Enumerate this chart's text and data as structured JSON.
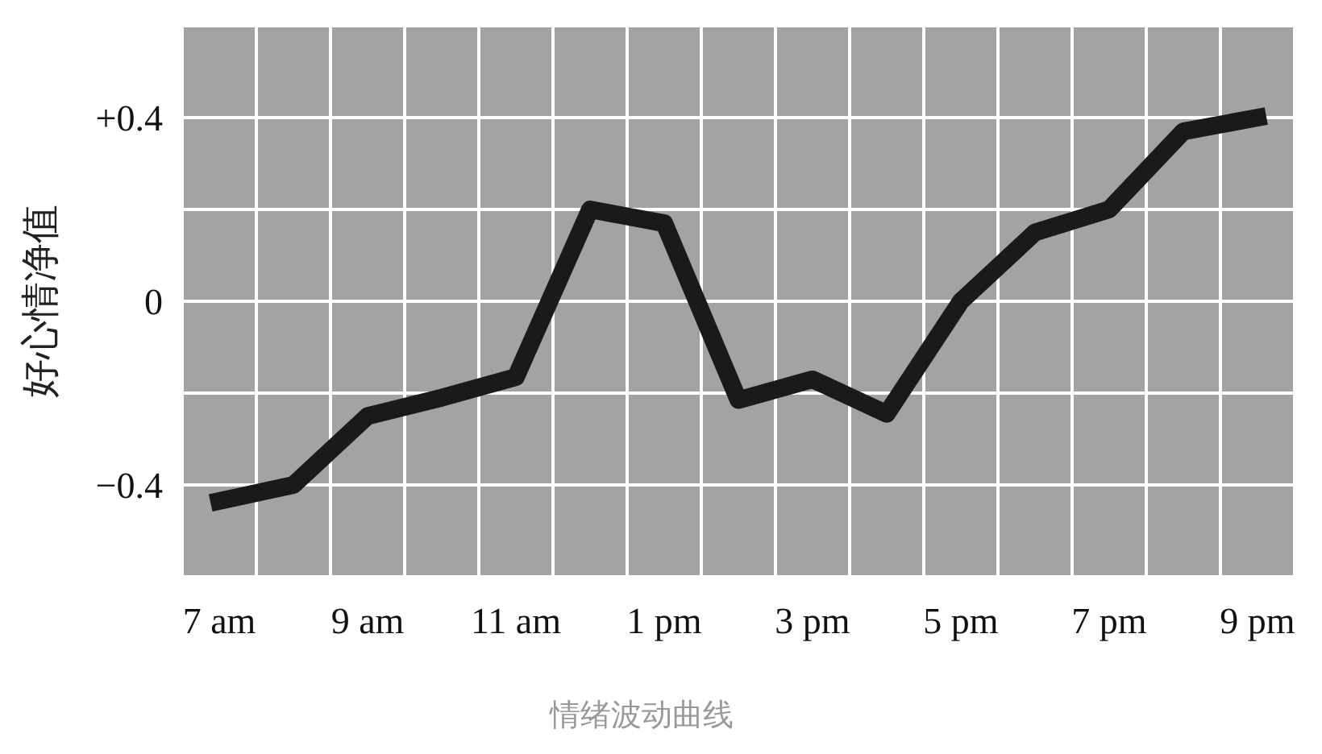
{
  "chart_data": {
    "type": "line",
    "ylabel": "好心情净值",
    "annotations": [
      "情绪波动曲线"
    ],
    "categories": [
      "7 am",
      null,
      "9 am",
      null,
      "11 am",
      null,
      "1 pm",
      null,
      "3 pm",
      null,
      "5 pm",
      null,
      "7 pm",
      null,
      "9 pm"
    ],
    "series": [
      {
        "color": "#1a1a1a",
        "values": [
          -0.435,
          -0.4,
          -0.25,
          -0.21,
          -0.165,
          0.2,
          0.17,
          -0.215,
          -0.17,
          -0.245,
          0.0,
          0.15,
          0.2,
          0.37,
          0.4
        ]
      }
    ],
    "ylim": [
      -0.6,
      0.6
    ],
    "yticks": [
      {
        "value": -0.6,
        "label": null
      },
      {
        "value": -0.4,
        "label": "−0.4"
      },
      {
        "value": -0.2,
        "label": null
      },
      {
        "value": 0,
        "label": "0"
      },
      {
        "value": 0.2,
        "label": null
      },
      {
        "value": 0.4,
        "label": "+0.4"
      },
      {
        "value": 0.6,
        "label": null
      }
    ],
    "grid": true,
    "marker": "none",
    "line_style": "solid"
  }
}
